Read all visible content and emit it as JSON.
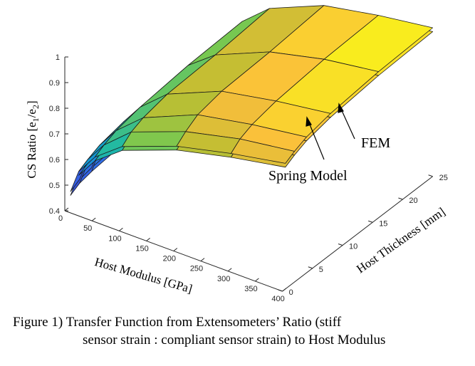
{
  "chart_data": {
    "type": "surface3d",
    "zlabel": "CS Ratio [e1/e2]",
    "zlabel_parts": {
      "main": "CS Ratio [e",
      "sub1": "1",
      "mid": "/e",
      "sub2": "2",
      "close": "]"
    },
    "xlabel": "Host Modulus [GPa]",
    "ylabel": "Host Thickness [mm]",
    "xlim": [
      0,
      400
    ],
    "ylim": [
      0,
      25
    ],
    "zlim": [
      0.4,
      1.0
    ],
    "xticks": [
      "0",
      "50",
      "100",
      "150",
      "200",
      "250",
      "300",
      "350",
      "400"
    ],
    "yticks": [
      "0",
      "5",
      "10",
      "15",
      "20",
      "25"
    ],
    "zticks": [
      "0.4",
      "0.5",
      "0.6",
      "0.7",
      "0.8",
      "0.9",
      "1"
    ],
    "colormap": "parula",
    "x_grid": [
      5,
      20,
      50,
      100,
      200,
      300,
      400
    ],
    "y_grid": [
      0.5,
      2,
      4,
      8,
      16,
      25
    ],
    "series": [
      {
        "name": "FEM",
        "z": [
          [
            0.47,
            0.56,
            0.64,
            0.72,
            0.8,
            0.85,
            0.89
          ],
          [
            0.49,
            0.58,
            0.66,
            0.75,
            0.83,
            0.88,
            0.91
          ],
          [
            0.5,
            0.6,
            0.68,
            0.77,
            0.86,
            0.9,
            0.93
          ],
          [
            0.51,
            0.62,
            0.7,
            0.79,
            0.88,
            0.92,
            0.95
          ],
          [
            0.52,
            0.63,
            0.72,
            0.8,
            0.89,
            0.94,
            0.97
          ],
          [
            0.53,
            0.64,
            0.73,
            0.82,
            0.91,
            0.95,
            0.98
          ]
        ]
      },
      {
        "name": "Spring Model",
        "z": [
          [
            0.455,
            0.545,
            0.625,
            0.705,
            0.785,
            0.835,
            0.875
          ],
          [
            0.475,
            0.565,
            0.645,
            0.735,
            0.815,
            0.865,
            0.895
          ],
          [
            0.485,
            0.585,
            0.665,
            0.755,
            0.845,
            0.885,
            0.915
          ],
          [
            0.495,
            0.605,
            0.685,
            0.775,
            0.865,
            0.905,
            0.935
          ],
          [
            0.505,
            0.615,
            0.705,
            0.785,
            0.875,
            0.925,
            0.955
          ],
          [
            0.515,
            0.625,
            0.715,
            0.805,
            0.895,
            0.935,
            0.965
          ]
        ]
      }
    ],
    "annotations": [
      {
        "text": "FEM"
      },
      {
        "text": "Spring Model"
      }
    ],
    "grid": false
  },
  "caption": {
    "line1": "Figure 1) Transfer Function from Extensometers’ Ratio (stiff",
    "line2": "sensor strain : compliant sensor strain) to Host Modulus"
  }
}
